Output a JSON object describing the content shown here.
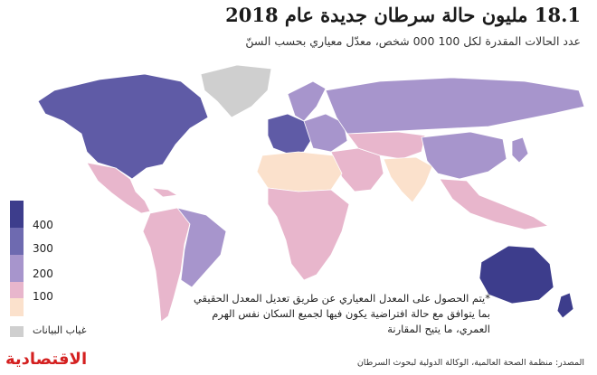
{
  "header": {
    "title": "18.1 مليون حالة سرطان جديدة عام 2018",
    "subtitle": "عدد الحالات المقدرة لكل 100 000 شخص، معدّل معياري بحسب السنّ"
  },
  "legend": {
    "bins": [
      {
        "label": "400",
        "color": "#3d3d8c"
      },
      {
        "label": "300",
        "color": "#6e6ab0"
      },
      {
        "label": "200",
        "color": "#a795cc"
      },
      {
        "label": "100",
        "color": "#e8b6cc"
      },
      {
        "label": "",
        "color": "#fbe1cc"
      }
    ],
    "nodata_label": "غياب البيانات",
    "nodata_color": "#cfcfcf"
  },
  "note": "*يتم الحصول على المعدل المعياري عن طريق تعديل المعدل الحقيقي بما يتوافق مع حالة افتراضية يكون فيها لجميع السكان نفس الهرم العمري، ما يتيح المقارنة",
  "source": "المصدر: منظمة الصحة العالمية، الوكالة الدولية لبحوث السرطان",
  "logo": "الاقتصادية",
  "map_regions": {
    "north-america": "#5f5ba6",
    "greenland": "#cfcfcf",
    "mexico-central-america": "#e8b6cc",
    "caribbean": "#e8b6cc",
    "south-america": "#e8b6cc",
    "brazil": "#a795cc",
    "western-europe": "#5f5ba6",
    "eastern-europe": "#a795cc",
    "scandinavia": "#a795cc",
    "russia": "#a795cc",
    "north-africa": "#fbe1cc",
    "sub-saharan-africa": "#e8b6cc",
    "middle-east": "#e8b6cc",
    "central-asia": "#e8b6cc",
    "south-asia": "#fbe1cc",
    "china": "#a795cc",
    "southeast-asia": "#e8b6cc",
    "japan-korea": "#a795cc",
    "australia": "#3d3d8c",
    "new-zealand": "#3d3d8c"
  }
}
